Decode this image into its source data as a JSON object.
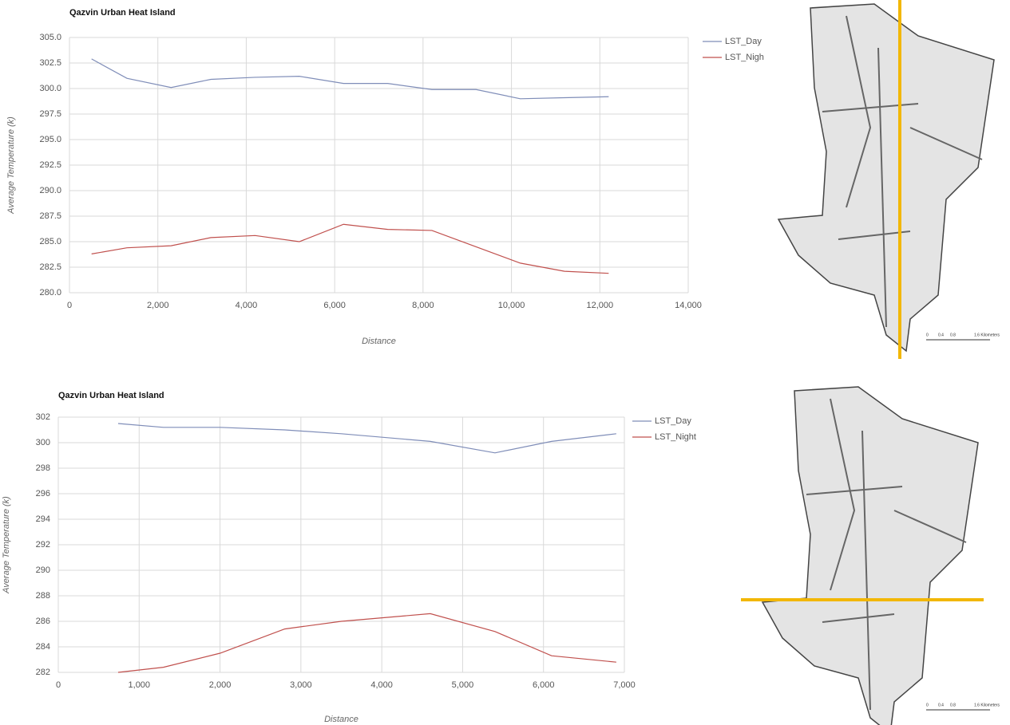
{
  "chart_data": [
    {
      "type": "line",
      "title": "Qazvin Urban Heat Island",
      "xlabel": "Distance",
      "ylabel": "Average Temperature (k)",
      "xlim": [
        0,
        14000
      ],
      "ylim": [
        280,
        305
      ],
      "grid": true,
      "legend": "right",
      "xticks": [
        0,
        {
          "value": 2000,
          "label": "2,000"
        },
        {
          "value": 4000,
          "label": "4,000"
        },
        {
          "value": 6000,
          "label": "6,000"
        },
        {
          "value": 8000,
          "label": "8,000"
        },
        {
          "value": 10000,
          "label": "10,000"
        },
        {
          "value": 12000,
          "label": "12,000"
        },
        {
          "value": 14000,
          "label": "14,000"
        }
      ],
      "yticks": [
        {
          "value": 280,
          "label": "280.0"
        },
        {
          "value": 282.5,
          "label": "282.5"
        },
        {
          "value": 285,
          "label": "285.0"
        },
        {
          "value": 287.5,
          "label": "287.5"
        },
        {
          "value": 290,
          "label": "290.0"
        },
        {
          "value": 292.5,
          "label": "292.5"
        },
        {
          "value": 295,
          "label": "295.0"
        },
        {
          "value": 297.5,
          "label": "297.5"
        },
        {
          "value": 300,
          "label": "300.0"
        },
        {
          "value": 302.5,
          "label": "302.5"
        },
        {
          "value": 305,
          "label": "305.0"
        }
      ],
      "x": [
        500,
        1300,
        2300,
        3200,
        4200,
        5200,
        6200,
        7200,
        8200,
        9200,
        10200,
        11200,
        12200
      ],
      "series": [
        {
          "name": "LST_Day",
          "color": "#7f8db8",
          "values": [
            302.9,
            301.0,
            300.1,
            300.9,
            301.1,
            301.2,
            300.5,
            300.5,
            299.9,
            299.9,
            299.0,
            299.1,
            299.2
          ]
        },
        {
          "name": "LST_Nigh",
          "color": "#c0504d",
          "values": [
            283.8,
            284.4,
            284.6,
            285.4,
            285.6,
            285.0,
            286.7,
            286.2,
            286.1,
            284.5,
            282.9,
            282.1,
            281.9
          ]
        }
      ]
    },
    {
      "type": "line",
      "title": "Qazvin Urban Heat Island",
      "xlabel": "Distance",
      "ylabel": "Average Temperature (k)",
      "xlim": [
        0,
        7000
      ],
      "ylim": [
        282,
        302
      ],
      "grid": true,
      "legend": "right",
      "xticks": [
        0,
        {
          "value": 1000,
          "label": "1,000"
        },
        {
          "value": 2000,
          "label": "2,000"
        },
        {
          "value": 3000,
          "label": "3,000"
        },
        {
          "value": 4000,
          "label": "4,000"
        },
        {
          "value": 5000,
          "label": "5,000"
        },
        {
          "value": 6000,
          "label": "6,000"
        },
        {
          "value": 7000,
          "label": "7,000"
        }
      ],
      "yticks": [
        282,
        284,
        286,
        288,
        290,
        292,
        294,
        296,
        298,
        300,
        302
      ],
      "x": [
        740,
        1300,
        2000,
        2800,
        3500,
        4600,
        5400,
        6100,
        6900
      ],
      "series": [
        {
          "name": "LST_Day",
          "color": "#7f8db8",
          "values": [
            301.5,
            301.2,
            301.2,
            301.0,
            300.7,
            300.1,
            299.2,
            300.1,
            300.7
          ]
        },
        {
          "name": "LST_Night",
          "color": "#c0504d",
          "values": [
            282.0,
            282.4,
            283.5,
            285.4,
            286.0,
            286.6,
            285.2,
            283.3,
            282.8
          ]
        }
      ]
    }
  ],
  "maps": [
    {
      "scale_labels": [
        "0",
        "0.4",
        "0.8",
        "1.6 Kilometers"
      ]
    },
    {
      "scale_labels": [
        "0",
        "0.4",
        "0.8",
        "1.6 Kilometers"
      ]
    }
  ]
}
